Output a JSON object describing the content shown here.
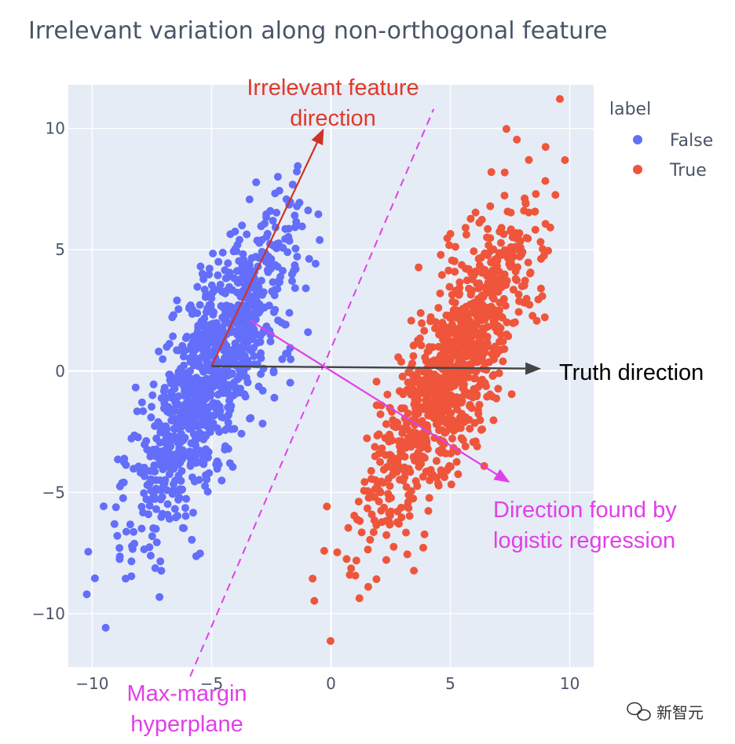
{
  "chart_data": {
    "type": "scatter",
    "title": "Irrelevant variation along non-orthogonal feature",
    "xlabel": "",
    "ylabel": "",
    "xlim": [
      -11,
      11
    ],
    "ylim": [
      -12.2,
      11.8
    ],
    "x_ticks": [
      -10,
      -5,
      0,
      5,
      10
    ],
    "x_tick_labels": [
      "−10",
      "−5",
      "0",
      "5",
      "10"
    ],
    "y_ticks": [
      10,
      5,
      0,
      -5,
      -10
    ],
    "y_tick_labels": [
      "10",
      "5",
      "0",
      "−5",
      "−10"
    ],
    "grid": true,
    "legend": {
      "title": "label",
      "placement": "top-right",
      "entries": [
        {
          "name": "False",
          "color": "#636efa"
        },
        {
          "name": "True",
          "color": "#ef553b"
        }
      ]
    },
    "series": [
      {
        "name": "False",
        "color": "#636efa",
        "center": [
          -5,
          0
        ],
        "count": 1000,
        "cluster_axis": [
          0.42,
          0.907
        ],
        "spread_major": 3.6,
        "spread_minor": 0.95
      },
      {
        "name": "True",
        "color": "#ef553b",
        "center": [
          5,
          0
        ],
        "count": 1000,
        "cluster_axis": [
          0.42,
          0.907
        ],
        "spread_major": 3.6,
        "spread_minor": 0.95
      }
    ],
    "annotations": [
      {
        "id": "irrelevant",
        "text_lines": [
          "Irrelevant feature",
          "direction"
        ],
        "color": "#e03a2a",
        "arrow_from": [
          -5,
          0.2
        ],
        "arrow_to": [
          -0.3,
          10.0
        ]
      },
      {
        "id": "truth",
        "text_lines": [
          "Truth direction"
        ],
        "color": "#000000",
        "arrow_from": [
          -5,
          0.2
        ],
        "arrow_to": [
          8.8,
          0.1
        ]
      },
      {
        "id": "logistic",
        "text_lines": [
          "Direction found by",
          "logistic regression"
        ],
        "color": "#e040e8",
        "arrow_from": [
          -3.4,
          2.1
        ],
        "arrow_to": [
          7.5,
          -4.6
        ]
      },
      {
        "id": "hyperplane",
        "text_lines": [
          "Max-margin",
          "hyperplane"
        ],
        "color": "#e040e8",
        "line_from": [
          -5.9,
          -12.2
        ],
        "line_to": [
          4.3,
          10.8
        ]
      }
    ]
  },
  "watermark": "新智元"
}
